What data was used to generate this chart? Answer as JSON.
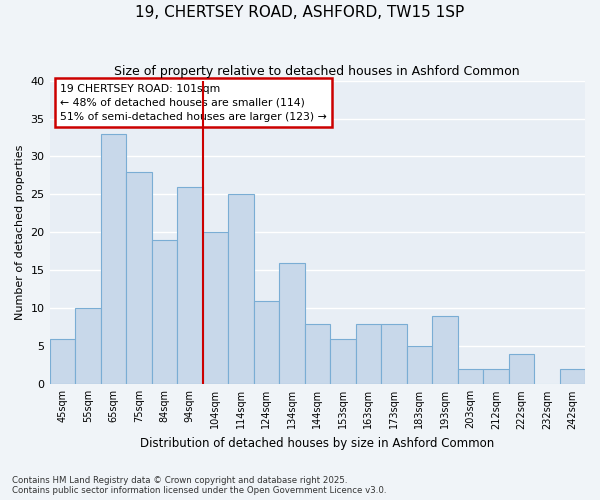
{
  "title": "19, CHERTSEY ROAD, ASHFORD, TW15 1SP",
  "subtitle": "Size of property relative to detached houses in Ashford Common",
  "xlabel": "Distribution of detached houses by size in Ashford Common",
  "ylabel": "Number of detached properties",
  "categories": [
    "45sqm",
    "55sqm",
    "65sqm",
    "75sqm",
    "84sqm",
    "94sqm",
    "104sqm",
    "114sqm",
    "124sqm",
    "134sqm",
    "144sqm",
    "153sqm",
    "163sqm",
    "173sqm",
    "183sqm",
    "193sqm",
    "203sqm",
    "212sqm",
    "222sqm",
    "232sqm",
    "242sqm"
  ],
  "values": [
    6,
    10,
    33,
    28,
    19,
    26,
    20,
    25,
    11,
    16,
    8,
    6,
    8,
    8,
    5,
    9,
    2,
    2,
    4,
    0,
    2
  ],
  "bar_color": "#c8d8ea",
  "bar_edge_color": "#7aadd4",
  "vline_index": 6,
  "vline_color": "#cc0000",
  "annotation_line1": "19 CHERTSEY ROAD: 101sqm",
  "annotation_line2": "← 48% of detached houses are smaller (114)",
  "annotation_line3": "51% of semi-detached houses are larger (123) →",
  "annotation_box_color": "#ffffff",
  "annotation_box_edge": "#cc0000",
  "footer_text": "Contains HM Land Registry data © Crown copyright and database right 2025.\nContains public sector information licensed under the Open Government Licence v3.0.",
  "ylim": [
    0,
    40
  ],
  "yticks": [
    0,
    5,
    10,
    15,
    20,
    25,
    30,
    35,
    40
  ],
  "bg_color": "#f0f4f8",
  "grid_color": "#ffffff",
  "plot_bg": "#e8eef5"
}
